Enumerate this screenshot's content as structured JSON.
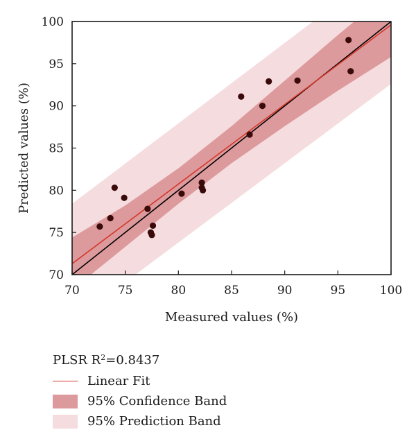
{
  "legend": {
    "title_prefix": "PLSR R",
    "title_sup": "2",
    "title_suffix": "=0.8437",
    "items": [
      {
        "label": "Linear Fit",
        "color": "#d4362b"
      },
      {
        "label": "95% Confidence Band",
        "color": "#dd9a9c"
      },
      {
        "label": "95% Prediction Band",
        "color": "#f5dcdf"
      }
    ]
  },
  "chart_data": {
    "type": "scatter",
    "xlabel": "Measured values (%)",
    "ylabel": "Predicted values (%)",
    "xlim": [
      70,
      100
    ],
    "ylim": [
      70,
      100
    ],
    "xticks": [
      70,
      75,
      80,
      85,
      90,
      95,
      100
    ],
    "yticks": [
      70,
      75,
      80,
      85,
      90,
      95,
      100
    ],
    "grid": false,
    "legend_position": "below",
    "colors": {
      "point": "#3a0a0a",
      "linear_fit": "#d4362b",
      "identity_line": "#000000",
      "confidence_band": "#dd9a9c",
      "prediction_band": "#f5dcdf"
    },
    "points": [
      {
        "x": 72.6,
        "y": 75.7
      },
      {
        "x": 73.6,
        "y": 76.7
      },
      {
        "x": 74.0,
        "y": 80.3
      },
      {
        "x": 74.9,
        "y": 79.1
      },
      {
        "x": 77.1,
        "y": 77.8
      },
      {
        "x": 77.4,
        "y": 75.0
      },
      {
        "x": 77.5,
        "y": 74.7
      },
      {
        "x": 77.6,
        "y": 75.8
      },
      {
        "x": 80.3,
        "y": 79.6
      },
      {
        "x": 82.2,
        "y": 80.9
      },
      {
        "x": 82.2,
        "y": 80.3
      },
      {
        "x": 82.3,
        "y": 80.0
      },
      {
        "x": 85.9,
        "y": 91.1
      },
      {
        "x": 86.7,
        "y": 86.6
      },
      {
        "x": 87.9,
        "y": 90.0
      },
      {
        "x": 88.5,
        "y": 92.9
      },
      {
        "x": 91.2,
        "y": 93.0
      },
      {
        "x": 96.0,
        "y": 97.8
      },
      {
        "x": 96.2,
        "y": 94.1
      }
    ],
    "linear_fit": {
      "x": [
        70,
        100
      ],
      "y": [
        71.3,
        99.6
      ]
    },
    "identity_line": {
      "x": [
        70,
        100
      ],
      "y": [
        70,
        100
      ]
    },
    "confidence_band": {
      "x": [
        70,
        75,
        80,
        85,
        90,
        95,
        100
      ],
      "upper": [
        74.4,
        78.2,
        82.6,
        87.6,
        93.0,
        98.4,
        103.6
      ],
      "lower": [
        68.2,
        73.3,
        78.4,
        83.2,
        87.6,
        91.8,
        95.8
      ]
    },
    "prediction_band": {
      "x": [
        70,
        100
      ],
      "upper": [
        78.4,
        107.0
      ],
      "lower": [
        64.4,
        92.6
      ]
    }
  }
}
